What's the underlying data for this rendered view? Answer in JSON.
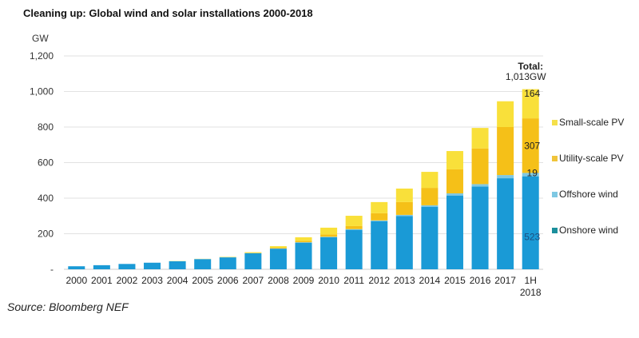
{
  "title": "Cleaning up: Global wind and solar installations 2000-2018",
  "source": "Source: Bloomberg NEF",
  "chart_data": {
    "type": "bar",
    "stacked": true,
    "title": "Cleaning up: Global wind and solar installations 2000-2018",
    "ylabel": "GW",
    "xlabel": "",
    "ylim": [
      0,
      1200
    ],
    "yticks": [
      0,
      200,
      400,
      600,
      800,
      1000,
      1200
    ],
    "ytick_labels": [
      "-",
      "200",
      "400",
      "600",
      "800",
      "1,000",
      "1,200"
    ],
    "grid": true,
    "legend": "right",
    "categories": [
      "2000",
      "2001",
      "2002",
      "2003",
      "2004",
      "2005",
      "2006",
      "2007",
      "2008",
      "2009",
      "2010",
      "2011",
      "2012",
      "2013",
      "2014",
      "2015",
      "2016",
      "2017",
      "1H 2018"
    ],
    "series": [
      {
        "name": "Onshore wind",
        "color": "#1a9ad6",
        "legend_color": "#1b8f9c",
        "values": [
          17,
          23,
          30,
          37,
          45,
          57,
          67,
          90,
          116,
          150,
          180,
          222,
          270,
          300,
          352,
          415,
          465,
          512,
          523
        ]
      },
      {
        "name": "Offshore wind",
        "color": "#7ec8e3",
        "legend_color": "#7ec8e3",
        "values": [
          0,
          0,
          0,
          0,
          0,
          1,
          1,
          1,
          1,
          2,
          3,
          4,
          5,
          6,
          8,
          12,
          14,
          18,
          19
        ]
      },
      {
        "name": "Utility-scale PV",
        "color": "#f5c018",
        "legend_color": "#f0c43a",
        "values": [
          0,
          0,
          0,
          0,
          0,
          0,
          0,
          1,
          4,
          8,
          13,
          17,
          40,
          72,
          98,
          135,
          201,
          270,
          307
        ]
      },
      {
        "name": "Small-scale PV",
        "color": "#f9e03a",
        "legend_color": "#f5e04a",
        "values": [
          0,
          0,
          0,
          0,
          1,
          1,
          2,
          4,
          9,
          20,
          38,
          58,
          63,
          76,
          90,
          103,
          115,
          145,
          164
        ]
      }
    ],
    "annotations": {
      "total_label": "Total:",
      "total_value": "1,013GW",
      "last_bar_labels": [
        "523",
        "19",
        "307",
        "164"
      ]
    }
  }
}
